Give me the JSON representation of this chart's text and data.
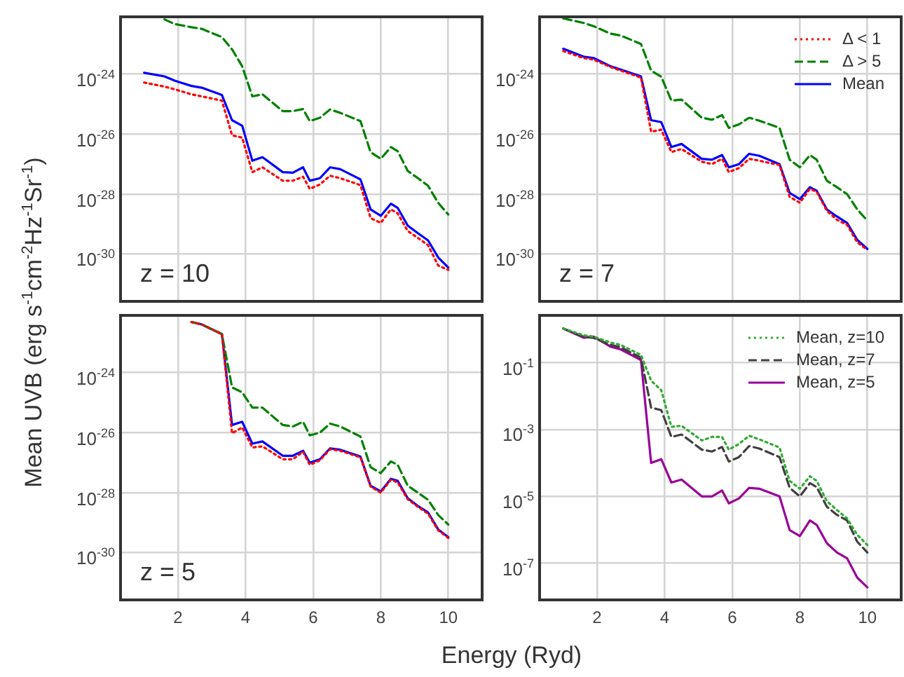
{
  "chart_data": [
    {
      "type": "line",
      "x": [
        1.0,
        1.6,
        1.9,
        2.4,
        2.7,
        3.3,
        3.6,
        3.9,
        4.2,
        4.5,
        5.1,
        5.4,
        5.7,
        5.9,
        6.2,
        6.5,
        6.8,
        7.4,
        7.7,
        8.0,
        8.3,
        8.5,
        8.8,
        9.1,
        9.4,
        9.7,
        10.0
      ],
      "series": [
        {
          "color": "#ff0000",
          "line_style": "dotted",
          "values": [
            5.2e-25,
            3.8e-25,
            3.1e-25,
            2.1e-25,
            1.8e-25,
            1.3e-25,
            9.1e-27,
            7.6e-27,
            5.4e-28,
            7.8e-28,
            2.8e-28,
            2.8e-28,
            3.8e-28,
            1.5e-28,
            2.1e-28,
            4.1e-28,
            3.4e-28,
            2e-28,
            1.6e-29,
            1.1e-29,
            3.1e-29,
            2.3e-29,
            5.9e-30,
            3.5e-30,
            2e-30,
            4.2e-31,
            3e-31
          ]
        },
        {
          "color": "#008000",
          "line_style": "dashed",
          "values": [
            null,
            6.6e-23,
            4.6e-23,
            3.6e-23,
            3.2e-23,
            1.7e-23,
            6.6e-24,
            1.8e-24,
            1.8e-25,
            2.1e-25,
            5.8e-26,
            5.8e-26,
            6.8e-26,
            2.7e-26,
            3.5e-26,
            6.6e-26,
            5.1e-26,
            2.7e-26,
            2.5e-27,
            1.5e-27,
            3.7e-27,
            2.7e-27,
            5.9e-28,
            3.4e-28,
            1.9e-28,
            5.1e-29,
            2.1e-29
          ]
        },
        {
          "color": "#0000ff",
          "line_style": "solid",
          "values": [
            1.1e-24,
            8.3e-25,
            6e-25,
            4e-25,
            3.5e-25,
            2e-25,
            2.9e-26,
            1.9e-26,
            1.3e-27,
            1.7e-27,
            5.4e-28,
            5.2e-28,
            7.8e-28,
            2.8e-28,
            3.4e-28,
            7.8e-28,
            6.8e-28,
            3.1e-28,
            3.1e-29,
            1.9e-29,
            4.8e-29,
            3.5e-29,
            8.9e-30,
            5e-30,
            2.9e-30,
            7.8e-31,
            3.6e-31
          ]
        }
      ],
      "ylabel": "Mean UVB (erg s$^{-1}$cm$^{-2}$Hz$^{-1}$Sr$^{-1}$)",
      "annotations": [
        "z = 10"
      ],
      "log": "y",
      "grid": true,
      "tick_labels": "y",
      "xlim": [
        0.3,
        11.0
      ],
      "xticks": [
        2,
        4,
        6,
        8,
        10
      ],
      "ylim": [
        2.7e-32,
        8e-23
      ],
      "yticks": [
        {
          "value": 1e-24,
          "label": "10$^{-24}$"
        },
        {
          "value": 1e-26,
          "label": "10$^{-26}$"
        },
        {
          "value": 1e-28,
          "label": "10$^{-28}$"
        },
        {
          "value": 1e-30,
          "label": "10$^{-30}$"
        }
      ]
    },
    {
      "type": "line",
      "x": [
        1.0,
        1.6,
        1.9,
        2.4,
        2.7,
        3.3,
        3.6,
        3.9,
        4.2,
        4.5,
        5.1,
        5.4,
        5.7,
        5.9,
        6.2,
        6.5,
        6.8,
        7.4,
        7.7,
        8.0,
        8.3,
        8.5,
        8.8,
        9.1,
        9.4,
        9.7,
        10.0
      ],
      "series": [
        {
          "name": "Δ < 1",
          "color": "#ff0000",
          "line_style": "dotted",
          "values": [
            5.8e-24,
            3.4e-24,
            3e-24,
            1.7e-24,
            1.3e-24,
            7.6e-25,
            1.2e-26,
            1.4e-26,
            2.5e-27,
            3.2e-27,
            1.2e-27,
            1e-27,
            1.5e-27,
            5.4e-28,
            7.4e-28,
            1.5e-27,
            1.3e-27,
            9.3e-28,
            8.1e-29,
            5.2e-29,
            1.5e-28,
            1.2e-28,
            2.8e-29,
            1.4e-29,
            9.5e-30,
            2.5e-30,
            1.4e-30
          ]
        },
        {
          "name": "Δ > 5",
          "color": "#008000",
          "line_style": "dashed",
          "values": [
            7.1e-23,
            5e-23,
            3.9e-23,
            2.2e-23,
            1.9e-23,
            1e-23,
            1.3e-24,
            8.1e-25,
            1.3e-25,
            1.4e-25,
            3.5e-26,
            3e-26,
            4.3e-26,
            1.6e-26,
            2.1e-26,
            3.5e-26,
            2.8e-26,
            1.6e-26,
            1.4e-27,
            7.8e-28,
            2e-27,
            1.4e-27,
            2.8e-28,
            1.7e-28,
            1e-28,
            3.1e-29,
            1.3e-29
          ]
        },
        {
          "name": "Mean",
          "color": "#0000ff",
          "line_style": "solid",
          "values": [
            6.9e-24,
            3.8e-24,
            3.4e-24,
            1.8e-24,
            1.4e-24,
            8.3e-25,
            2.9e-26,
            2.5e-26,
            3.7e-27,
            4.7e-27,
            1.5e-27,
            1.4e-27,
            2e-27,
            7.8e-28,
            1e-27,
            2.2e-27,
            1.9e-27,
            1e-27,
            1.1e-28,
            6.8e-29,
            1.7e-28,
            1.3e-28,
            3.1e-29,
            1.8e-29,
            1.1e-29,
            3e-30,
            1.5e-30
          ]
        }
      ],
      "annotations": [
        "z = 7"
      ],
      "log": "y",
      "grid": true,
      "tick_labels": "y",
      "legend": "top right",
      "xlim": [
        0.3,
        11.0
      ],
      "xticks": [
        2,
        4,
        6,
        8,
        10
      ],
      "ylim": [
        2.7e-32,
        8e-23
      ],
      "yticks": [
        {
          "value": 1e-24,
          "label": "10$^{-24}$"
        },
        {
          "value": 1e-26,
          "label": "10$^{-26}$"
        },
        {
          "value": 1e-28,
          "label": "10$^{-28}$"
        },
        {
          "value": 1e-30,
          "label": "10$^{-30}$"
        }
      ]
    },
    {
      "type": "line",
      "x": [
        2.4,
        2.7,
        3.3,
        3.6,
        3.9,
        4.2,
        4.5,
        5.1,
        5.4,
        5.7,
        5.9,
        6.2,
        6.5,
        6.8,
        7.4,
        7.7,
        8.0,
        8.3,
        8.5,
        8.8,
        9.1,
        9.4,
        9.7,
        10.0
      ],
      "series": [
        {
          "color": "#ff0000",
          "line_style": "dotted",
          "values": [
            4.8e-23,
            4e-23,
            1.9e-23,
            9.5e-27,
            1.5e-26,
            3.2e-27,
            3.5e-27,
            1.3e-27,
            1.3e-27,
            2.3e-27,
            8.5e-28,
            1.2e-27,
            2.8e-27,
            2.5e-27,
            1.5e-27,
            1.6e-28,
            1e-28,
            2.7e-28,
            2.2e-28,
            6e-29,
            3.4e-29,
            2e-29,
            5.6e-30,
            3.1e-30
          ]
        },
        {
          "color": "#008000",
          "line_style": "dashed",
          "values": [
            4.8e-23,
            4e-23,
            1.9e-23,
            3.2e-25,
            2.2e-25,
            6.8e-26,
            6.8e-26,
            1.8e-26,
            1.6e-26,
            2.3e-26,
            8.1e-27,
            1e-26,
            2e-26,
            1.6e-26,
            7.4e-27,
            7.1e-28,
            4.5e-28,
            1.1e-27,
            8.5e-28,
            1.7e-28,
            1e-28,
            5.8e-29,
            1.8e-29,
            8.7e-30
          ]
        },
        {
          "color": "#0000ff",
          "line_style": "solid",
          "values": [
            4.8e-23,
            4e-23,
            1.9e-23,
            1.8e-26,
            2.3e-26,
            4.3e-27,
            5.1e-27,
            1.7e-27,
            1.7e-27,
            2.5e-27,
            1e-27,
            1.3e-27,
            3e-27,
            2.7e-27,
            1.6e-27,
            1.7e-28,
            1.1e-28,
            2.9e-28,
            2.5e-28,
            6.5e-29,
            3.6e-29,
            2.2e-29,
            6e-30,
            3.3e-30
          ]
        }
      ],
      "xlabel": "Energy (Ryd)",
      "annotations": [
        "z = 5"
      ],
      "log": "y",
      "grid": true,
      "xlim": [
        0.3,
        11.0
      ],
      "xticks": [
        2,
        4,
        6,
        8,
        10
      ],
      "ylim": [
        2.7e-32,
        8e-23
      ],
      "yticks": [
        {
          "value": 1e-24,
          "label": "10$^{-24}$"
        },
        {
          "value": 1e-26,
          "label": "10$^{-26}$"
        },
        {
          "value": 1e-28,
          "label": "10$^{-28}$"
        },
        {
          "value": 1e-30,
          "label": "10$^{-30}$"
        }
      ]
    },
    {
      "type": "line",
      "x": [
        1.0,
        1.6,
        1.9,
        2.4,
        2.7,
        3.3,
        3.6,
        3.9,
        4.2,
        4.5,
        5.1,
        5.4,
        5.7,
        5.9,
        6.2,
        6.5,
        6.8,
        7.4,
        7.7,
        8.0,
        8.3,
        8.5,
        8.8,
        9.1,
        9.4,
        9.7,
        10.0
      ],
      "series": [
        {
          "name": "Mean, z=10",
          "color": "#33aa33",
          "line_style": "dotted",
          "values": [
            1.05,
            0.66,
            0.6,
            0.4,
            0.34,
            0.17,
            0.029,
            0.015,
            0.0012,
            0.0013,
            0.00047,
            0.0006,
            0.0006,
            0.00025,
            0.00037,
            0.00065,
            0.00051,
            0.00029,
            2.9e-05,
            1.7e-05,
            4e-05,
            2.9e-05,
            7.2e-06,
            3.9e-06,
            2.2e-06,
            7.1e-07,
            3.5e-07
          ]
        },
        {
          "name": "Mean, z=7",
          "color": "#404040",
          "line_style": "dashed",
          "values": [
            1.05,
            0.6,
            0.55,
            0.34,
            0.29,
            0.14,
            0.0045,
            0.0038,
            0.0006,
            0.00071,
            0.00025,
            0.00022,
            0.0003,
            0.00011,
            0.00015,
            0.00032,
            0.00027,
            0.00015,
            1.8e-05,
            1e-05,
            2.5e-05,
            1.9e-05,
            4.9e-06,
            2.8e-06,
            1.9e-06,
            4.4e-07,
            2.1e-07
          ]
        },
        {
          "name": "Mean, z=5",
          "color": "#990099",
          "line_style": "solid",
          "values": [
            1.05,
            0.56,
            0.6,
            0.3,
            0.25,
            0.12,
            0.0001,
            0.00013,
            2.6e-05,
            3.2e-05,
            1e-05,
            1e-05,
            1.5e-05,
            6.2e-06,
            8.7e-06,
            1.8e-05,
            1.7e-05,
            1e-05,
            9.8e-07,
            6.5e-07,
            1.9e-06,
            1.4e-06,
            4e-07,
            2.1e-07,
            1.4e-07,
            3.7e-08,
            1.9e-08
          ]
        }
      ],
      "log": "y",
      "grid": true,
      "legend": "top right",
      "xlim": [
        0.3,
        11.0
      ],
      "xticks": [
        2,
        4,
        6,
        8,
        10
      ],
      "ylim": [
        8e-09,
        2.6
      ],
      "yticks": [
        {
          "value": 0.1,
          "label": "10$^{-1}$"
        },
        {
          "value": 0.001,
          "label": "10$^{-3}$"
        },
        {
          "value": 1e-05,
          "label": "10$^{-5}$"
        },
        {
          "value": 1e-07,
          "label": "10$^{-7}$"
        }
      ]
    }
  ]
}
